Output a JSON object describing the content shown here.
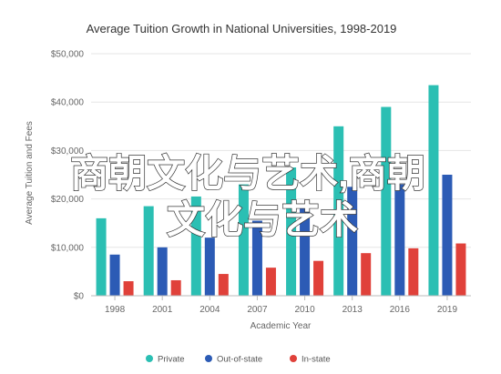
{
  "chart_data": {
    "type": "bar",
    "title": "Average Tuition Growth in National Universities, 1998-2019",
    "xlabel": "Academic Year",
    "ylabel": "Average Tuition and Fees",
    "categories": [
      "1998",
      "2001",
      "2004",
      "2007",
      "2010",
      "2013",
      "2016",
      "2019"
    ],
    "series": [
      {
        "name": "Private",
        "color": "#2bbfb3",
        "values": [
          16000,
          18500,
          20500,
          23000,
          26500,
          35000,
          39000,
          43500
        ]
      },
      {
        "name": "Out-of-state",
        "color": "#2c5bb5",
        "values": [
          8500,
          10000,
          12000,
          15500,
          18500,
          22500,
          23000,
          25000
        ]
      },
      {
        "name": "In-state",
        "color": "#e0413a",
        "values": [
          3000,
          3200,
          4500,
          5800,
          7200,
          8800,
          9800,
          10800
        ]
      }
    ],
    "y_ticks": [
      "$0",
      "$10,000",
      "$20,000",
      "$30,000",
      "$40,000",
      "$50,000"
    ],
    "ylim": [
      0,
      50000
    ],
    "grid": true,
    "legend_position": "bottom"
  },
  "overlay": {
    "line1": "商朝文化与艺术,商朝",
    "line2": "文化与艺术"
  }
}
